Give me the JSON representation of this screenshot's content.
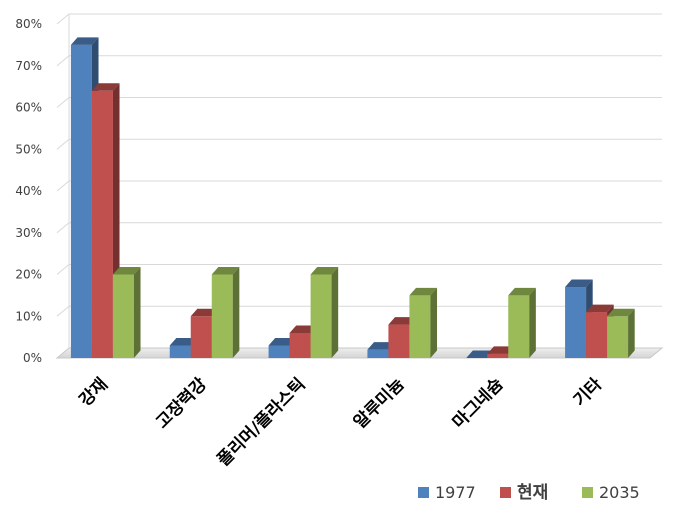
{
  "chart_data": {
    "type": "bar",
    "style": "3d-clustered-column",
    "title": "",
    "xlabel": "",
    "ylabel": "",
    "categories": [
      "강재",
      "고장력강",
      "폴리머/플라스틱",
      "알루미늄",
      "마그네슘",
      "기타"
    ],
    "series": [
      {
        "name": "1977",
        "color": "#4F81BD",
        "values": [
          75,
          3,
          3,
          2,
          0,
          17
        ]
      },
      {
        "name": "현재",
        "color": "#C0504D",
        "values": [
          64,
          10,
          6,
          8,
          1,
          11
        ]
      },
      {
        "name": "2035",
        "color": "#9BBB59",
        "values": [
          20,
          20,
          20,
          15,
          15,
          10
        ]
      }
    ],
    "ylim": [
      0,
      80
    ],
    "yticks": [
      "0%",
      "10%",
      "20%",
      "30%",
      "40%",
      "50%",
      "60%",
      "70%",
      "80%"
    ],
    "grid": true,
    "legend_position": "bottom-right"
  }
}
